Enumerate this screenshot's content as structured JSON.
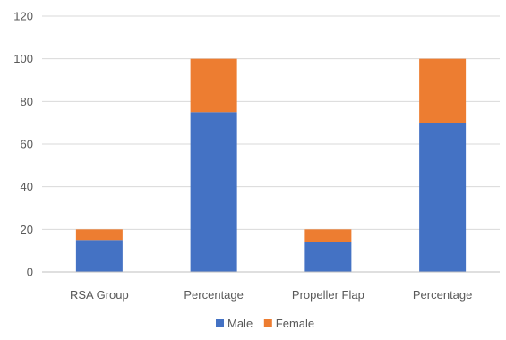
{
  "chart_data": {
    "type": "bar",
    "stacked": true,
    "categories": [
      "RSA Group",
      "Percentage",
      "Propeller Flap",
      "Percentage"
    ],
    "series": [
      {
        "name": "Male",
        "values": [
          15,
          75,
          14,
          70
        ],
        "color": "#4472c4"
      },
      {
        "name": "Female",
        "values": [
          5,
          25,
          6,
          30
        ],
        "color": "#ed7d31"
      }
    ],
    "ylim": [
      0,
      120
    ],
    "yticks": [
      0,
      20,
      40,
      60,
      80,
      100,
      120
    ],
    "grid": true,
    "legend": "bottom"
  }
}
